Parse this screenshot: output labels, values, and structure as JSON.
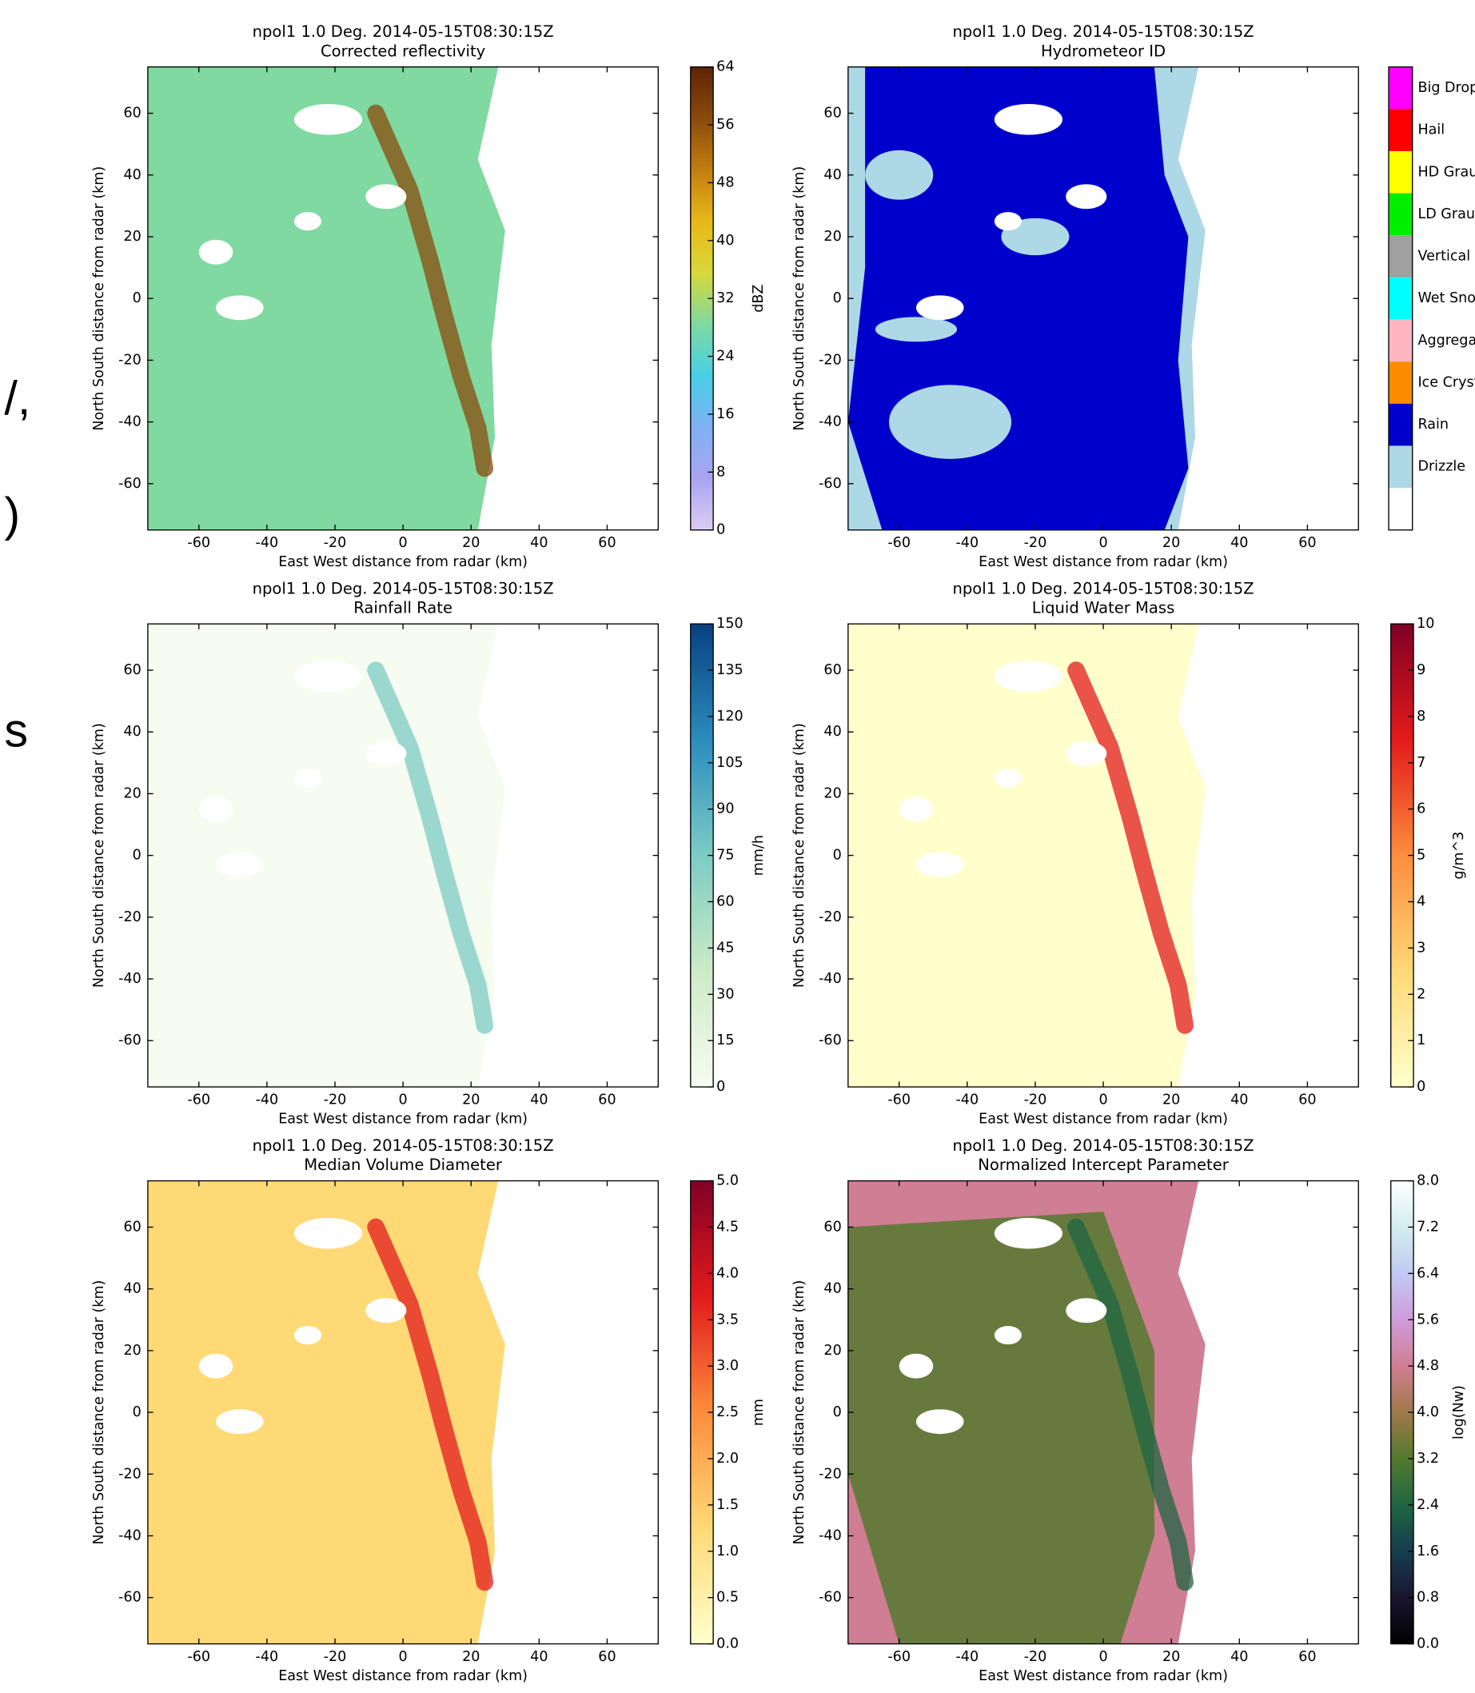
{
  "margin_text": [
    "/,",
    ")",
    "s"
  ],
  "chart_data": [
    {
      "type": "radar-ppi",
      "title": "npol1 1.0 Deg. 2014-05-15T08:30:15Z",
      "subtitle": "Corrected reflectivity",
      "xlabel": "East West distance from radar (km)",
      "ylabel": "North South distance from radar (km)",
      "xlim": [
        -75,
        75
      ],
      "ylim": [
        -75,
        75
      ],
      "xticks": [
        -60,
        -40,
        -20,
        0,
        20,
        40,
        60
      ],
      "yticks": [
        -60,
        -40,
        -20,
        0,
        20,
        40,
        60
      ],
      "clabel": "dBZ",
      "clim": [
        0,
        64
      ],
      "cticks": [
        0,
        8,
        16,
        24,
        32,
        40,
        48,
        56,
        64
      ],
      "colormap": [
        "#dccdf2",
        "#a9a4f2",
        "#7fb1f2",
        "#48cfe6",
        "#7fd9a0",
        "#d7d83a",
        "#e8b818",
        "#c27e10",
        "#8a4a0c",
        "#5e2405"
      ]
    },
    {
      "type": "radar-ppi-categorical",
      "title": "npol1 1.0 Deg. 2014-05-15T08:30:15Z",
      "subtitle": "Hydrometeor ID",
      "xlabel": "East West distance from radar (km)",
      "ylabel": "North South distance from radar (km)",
      "xlim": [
        -75,
        75
      ],
      "ylim": [
        -75,
        75
      ],
      "xticks": [
        -60,
        -40,
        -20,
        0,
        20,
        40,
        60
      ],
      "yticks": [
        -60,
        -40,
        -20,
        0,
        20,
        40,
        60
      ],
      "categories": [
        "Big Drop",
        "Hail",
        "HD Grau",
        "LD Grau",
        "Vertical",
        "Wet Sno",
        "Aggrega",
        "Ice Cryst",
        "Rain",
        "Drizzle",
        null
      ],
      "colors": [
        "#ff00ff",
        "#ff0000",
        "#ffff00",
        "#00ee00",
        "#a0a0a0",
        "#00ffff",
        "#ffb6c1",
        "#ff8c00",
        "#0000cd",
        "#add8e6",
        "#ffffff"
      ]
    },
    {
      "type": "radar-ppi",
      "title": "npol1 1.0 Deg. 2014-05-15T08:30:15Z",
      "subtitle": "Rainfall Rate",
      "xlabel": "East West distance from radar (km)",
      "ylabel": "North South distance from radar (km)",
      "xlim": [
        -75,
        75
      ],
      "ylim": [
        -75,
        75
      ],
      "xticks": [
        -60,
        -40,
        -20,
        0,
        20,
        40,
        60
      ],
      "yticks": [
        -60,
        -40,
        -20,
        0,
        20,
        40,
        60
      ],
      "clabel": "mm/h",
      "clim": [
        0,
        150
      ],
      "cticks": [
        0,
        15,
        30,
        45,
        60,
        75,
        90,
        105,
        120,
        135,
        150
      ],
      "colormap": [
        "#f7fcf0",
        "#ccebc5",
        "#7bccc4",
        "#2b8cbe",
        "#084081"
      ]
    },
    {
      "type": "radar-ppi",
      "title": "npol1 1.0 Deg. 2014-05-15T08:30:15Z",
      "subtitle": "Liquid Water Mass",
      "xlabel": "East West distance from radar (km)",
      "ylabel": "North South distance from radar (km)",
      "xlim": [
        -75,
        75
      ],
      "ylim": [
        -75,
        75
      ],
      "xticks": [
        -60,
        -40,
        -20,
        0,
        20,
        40,
        60
      ],
      "yticks": [
        -60,
        -40,
        -20,
        0,
        20,
        40,
        60
      ],
      "clabel": "g/m^3",
      "clim": [
        0,
        10
      ],
      "cticks": [
        0,
        1,
        2,
        3,
        4,
        5,
        6,
        7,
        8,
        9,
        10
      ],
      "colormap": [
        "#ffffcc",
        "#fed976",
        "#fd8d3c",
        "#e31a1c",
        "#800026"
      ]
    },
    {
      "type": "radar-ppi",
      "title": "npol1 1.0 Deg. 2014-05-15T08:30:15Z",
      "subtitle": "Median Volume Diameter",
      "xlabel": "East West distance from radar (km)",
      "ylabel": "North South distance from radar (km)",
      "xlim": [
        -75,
        75
      ],
      "ylim": [
        -75,
        75
      ],
      "xticks": [
        -60,
        -40,
        -20,
        0,
        20,
        40,
        60
      ],
      "yticks": [
        -60,
        -40,
        -20,
        0,
        20,
        40,
        60
      ],
      "clabel": "mm",
      "clim": [
        0,
        5
      ],
      "cticks": [
        {
          "value": 0,
          "label": "0.0"
        },
        0.5,
        {
          "value": 1,
          "label": "1.0"
        },
        1.5,
        {
          "value": 2,
          "label": "2.0"
        },
        2.5,
        {
          "value": 3,
          "label": "3.0"
        },
        3.5,
        {
          "value": 4,
          "label": "4.0"
        },
        4.5,
        {
          "value": 5,
          "label": "5.0"
        }
      ],
      "colormap": [
        "#ffffcc",
        "#fed976",
        "#fd8d3c",
        "#e31a1c",
        "#800026"
      ]
    },
    {
      "type": "radar-ppi",
      "title": "npol1 1.0 Deg. 2014-05-15T08:30:15Z",
      "subtitle": "Normalized Intercept Parameter",
      "xlabel": "East West distance from radar (km)",
      "ylabel": "North South distance from radar (km)",
      "xlim": [
        -75,
        75
      ],
      "ylim": [
        -75,
        75
      ],
      "xticks": [
        -60,
        -40,
        -20,
        0,
        20,
        40,
        60
      ],
      "yticks": [
        -60,
        -40,
        -20,
        0,
        20,
        40,
        60
      ],
      "clabel": "log(Nw)",
      "clim": [
        0,
        8
      ],
      "cticks": [
        {
          "value": 0,
          "label": "0.0"
        },
        0.8,
        1.6,
        2.4,
        3.2,
        {
          "value": 4,
          "label": "4.0"
        },
        4.8,
        5.6,
        6.4,
        7.2,
        {
          "value": 8,
          "label": "8.0"
        }
      ],
      "colormap": [
        "#000000",
        "#1a1530",
        "#163d4e",
        "#1f6642",
        "#54792f",
        "#a07949",
        "#d07e93",
        "#cf9cda",
        "#c1caf3",
        "#d2eeef",
        "#ffffff"
      ]
    }
  ]
}
